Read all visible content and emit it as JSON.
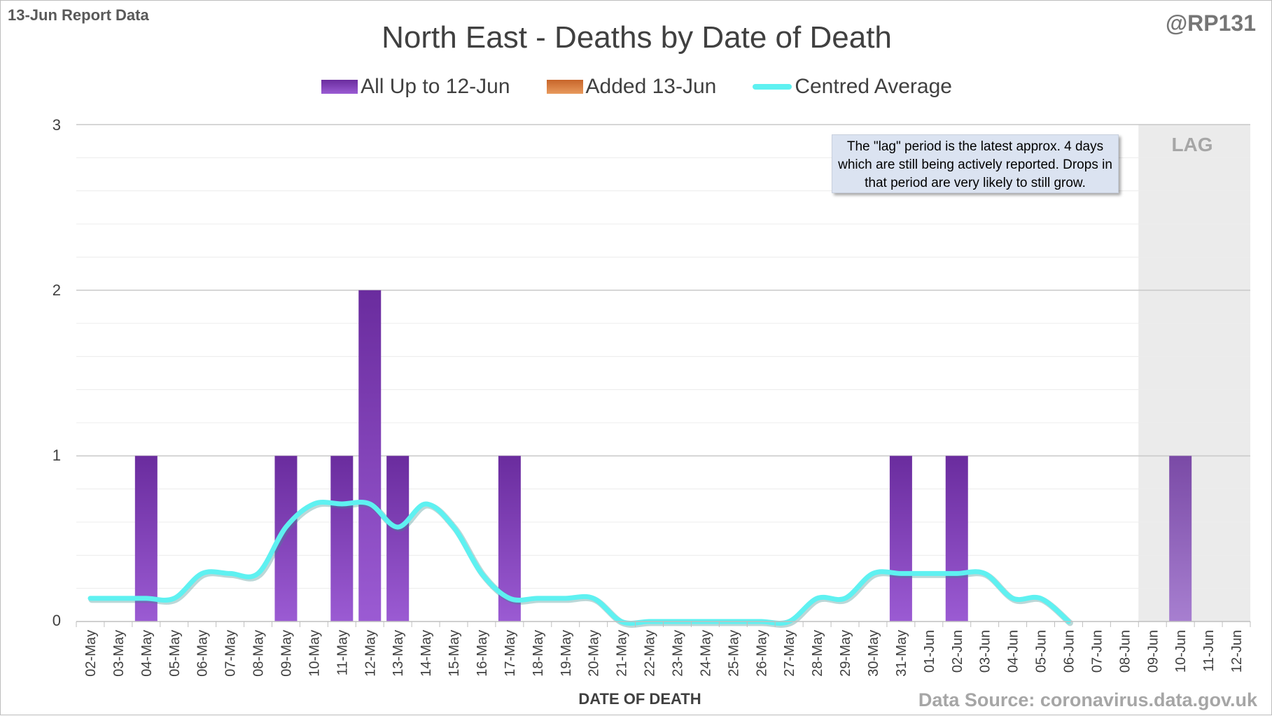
{
  "header": {
    "report_label": "13-Jun Report Data",
    "handle": "@RP131"
  },
  "annotation_text": "The \"lag\" period is the latest approx. 4 days which are still being actively reported. Drops in that period are very likely to still grow.",
  "lag_label": "LAG",
  "source_text": "Data Source: coronavirus.data.gov.uk",
  "colors": {
    "bar_top": "#6a2c9e",
    "bar_bottom": "#9b5bd3",
    "added": "#d9782f",
    "average": "#5ef1f1",
    "lag_shade": "#ebebeb",
    "gridline": "#d9d9d9"
  },
  "chart_data": {
    "type": "bar",
    "title": "North East - Deaths by Date of Death",
    "xlabel": "DATE OF DEATH",
    "ylabel": "",
    "ylim": [
      0,
      3
    ],
    "y_ticks": [
      "0",
      "1",
      "2",
      "3"
    ],
    "legend_position": "top-center",
    "categories": [
      "02-May",
      "03-May",
      "04-May",
      "05-May",
      "06-May",
      "07-May",
      "08-May",
      "09-May",
      "10-May",
      "11-May",
      "12-May",
      "13-May",
      "14-May",
      "15-May",
      "16-May",
      "17-May",
      "18-May",
      "19-May",
      "20-May",
      "21-May",
      "22-May",
      "23-May",
      "24-May",
      "25-May",
      "26-May",
      "27-May",
      "28-May",
      "29-May",
      "30-May",
      "31-May",
      "01-Jun",
      "02-Jun",
      "03-Jun",
      "04-Jun",
      "05-Jun",
      "06-Jun",
      "07-Jun",
      "08-Jun",
      "09-Jun",
      "10-Jun",
      "11-Jun",
      "12-Jun"
    ],
    "series": [
      {
        "name": "All Up to 12-Jun",
        "kind": "bar",
        "values": [
          0,
          0,
          1,
          0,
          0,
          0,
          0,
          1,
          0,
          1,
          2,
          1,
          0,
          0,
          0,
          1,
          0,
          0,
          0,
          0,
          0,
          0,
          0,
          0,
          0,
          0,
          0,
          0,
          0,
          1,
          0,
          1,
          0,
          0,
          0,
          0,
          0,
          0,
          0,
          1,
          0,
          0
        ]
      },
      {
        "name": "Added 13-Jun",
        "kind": "bar",
        "values": [
          0,
          0,
          0,
          0,
          0,
          0,
          0,
          0,
          0,
          0,
          0,
          0,
          0,
          0,
          0,
          0,
          0,
          0,
          0,
          0,
          0,
          0,
          0,
          0,
          0,
          0,
          0,
          0,
          0,
          0,
          0,
          0,
          0,
          0,
          0,
          0,
          0,
          0,
          0,
          0,
          0,
          0
        ]
      },
      {
        "name": "Centred Average",
        "kind": "line",
        "values": [
          0.14,
          0.14,
          0.14,
          0.14,
          0.29,
          0.29,
          0.29,
          0.57,
          0.71,
          0.71,
          0.71,
          0.57,
          0.71,
          0.57,
          0.29,
          0.14,
          0.14,
          0.14,
          0.14,
          0,
          0,
          0,
          0,
          0,
          0,
          0,
          0.14,
          0.14,
          0.29,
          0.29,
          0.29,
          0.29,
          0.29,
          0.14,
          0.14,
          0,
          null,
          null,
          null,
          null,
          null,
          null
        ]
      }
    ],
    "lag_period": [
      "09-Jun",
      "12-Jun"
    ],
    "grid": true
  }
}
